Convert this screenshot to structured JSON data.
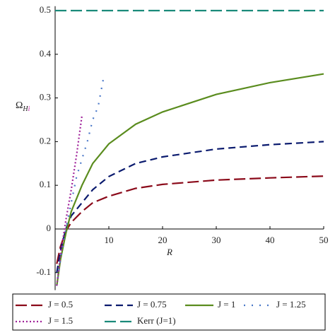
{
  "chart_data": {
    "type": "line",
    "x_label": "R",
    "y_label": {
      "base": "Ω",
      "sub": "H",
      "sub2": "i"
    },
    "xlim": [
      0,
      50
    ],
    "xticks": [
      10,
      20,
      30,
      40,
      50
    ],
    "ylim": [
      -0.14,
      0.51
    ],
    "yticks": [
      -0.1,
      0,
      0.1,
      0.2,
      0.3,
      0.4,
      0.5
    ],
    "series": [
      {
        "name": "J = 0.5",
        "color": "#8b0a1a",
        "dash": "long-dash",
        "x": [
          0.3,
          1,
          2,
          3,
          5,
          7,
          10,
          15,
          20,
          30,
          40,
          50
        ],
        "values": [
          -0.08,
          -0.04,
          -0.005,
          0.015,
          0.04,
          0.06,
          0.075,
          0.093,
          0.102,
          0.112,
          0.117,
          0.121
        ]
      },
      {
        "name": "J = 0.75",
        "color": "#0a1a6e",
        "dash": "dash",
        "x": [
          0.3,
          1,
          2,
          3,
          5,
          7,
          10,
          15,
          20,
          30,
          40,
          50
        ],
        "values": [
          -0.1,
          -0.05,
          0.0,
          0.03,
          0.06,
          0.09,
          0.12,
          0.15,
          0.165,
          0.183,
          0.193,
          0.2
        ]
      },
      {
        "name": "J = 1",
        "color": "#5a8c1e",
        "dash": "solid",
        "x": [
          0.3,
          1,
          2,
          3,
          5,
          7,
          10,
          15,
          20,
          30,
          40,
          50
        ],
        "values": [
          -0.13,
          -0.07,
          -0.01,
          0.04,
          0.1,
          0.15,
          0.195,
          0.24,
          0.268,
          0.308,
          0.335,
          0.355
        ]
      },
      {
        "name": "J = 1.25",
        "color": "#4a78c8",
        "dash": "sparse-dot",
        "x": [
          0.3,
          1,
          2,
          3,
          4,
          5,
          6,
          7,
          8,
          9
        ],
        "values": [
          -0.13,
          -0.07,
          0.0,
          0.06,
          0.12,
          0.16,
          0.2,
          0.25,
          0.28,
          0.345
        ]
      },
      {
        "name": "J = 1.5",
        "color": "#a0239a",
        "dash": "dot",
        "x": [
          0.3,
          1,
          2,
          3,
          4,
          5
        ],
        "values": [
          -0.13,
          -0.06,
          0.02,
          0.09,
          0.17,
          0.26
        ]
      },
      {
        "name": "Kerr (J=1)",
        "color": "#1a8a7a",
        "dash": "long-dash",
        "x": [
          0,
          50
        ],
        "values": [
          0.5,
          0.5
        ]
      }
    ]
  }
}
